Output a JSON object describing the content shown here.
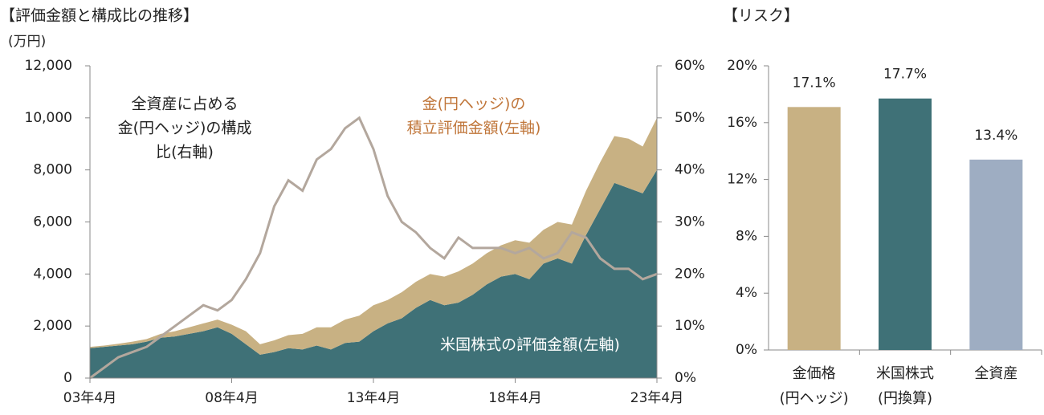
{
  "chart_data": [
    {
      "type": "area",
      "title": "【評価金額と構成比の推移】",
      "ylabel": "(万円)",
      "categories": [
        "03年4月",
        null,
        null,
        null,
        null,
        null,
        null,
        null,
        null,
        null,
        "08年4月",
        null,
        null,
        null,
        null,
        null,
        null,
        null,
        null,
        null,
        "13年4月",
        null,
        null,
        null,
        null,
        null,
        null,
        null,
        null,
        null,
        "18年4月",
        null,
        null,
        null,
        null,
        null,
        null,
        null,
        null,
        null,
        "23年4月"
      ],
      "ylim": [
        0,
        12000
      ],
      "yticks": [
        0,
        {
          "value": 2000,
          "label": "2,000"
        },
        {
          "value": 4000,
          "label": "4,000"
        },
        {
          "value": 6000,
          "label": "6,000"
        },
        {
          "value": 8000,
          "label": "8,000"
        },
        {
          "value": 10000,
          "label": "10,000"
        },
        {
          "value": 12000,
          "label": "12,000"
        }
      ],
      "y2lim": [
        0,
        60
      ],
      "y2ticks": [
        {
          "value": 0,
          "label": "0%"
        },
        {
          "value": 10,
          "label": "10%"
        },
        {
          "value": 20,
          "label": "20%"
        },
        {
          "value": 30,
          "label": "30%"
        },
        {
          "value": 40,
          "label": "40%"
        },
        {
          "value": 50,
          "label": "50%"
        },
        {
          "value": 60,
          "label": "60%"
        }
      ],
      "series": [
        {
          "name": [
            "米国株式の評価金額(左軸)"
          ],
          "color": "#3f7177",
          "stacked": true,
          "values": [
            1150,
            1200,
            1250,
            1300,
            1400,
            1550,
            1600,
            1700,
            1800,
            1950,
            1700,
            1300,
            900,
            1000,
            1150,
            1100,
            1250,
            1100,
            1350,
            1400,
            1800,
            2100,
            2300,
            2700,
            3000,
            2800,
            2900,
            3200,
            3600,
            3900,
            4000,
            3800,
            4400,
            4600,
            4400,
            5500,
            6500,
            7500,
            7300,
            7100,
            8000
          ]
        },
        {
          "name": [
            "金(円ヘッジ)の",
            "積立評価金額(左軸)"
          ],
          "color": "#c8b183",
          "label_color": "#c0763a",
          "stacked": true,
          "values": [
            50,
            50,
            70,
            100,
            100,
            150,
            200,
            250,
            300,
            300,
            350,
            500,
            400,
            450,
            500,
            600,
            700,
            850,
            900,
            1000,
            1000,
            900,
            1000,
            1000,
            1000,
            1100,
            1200,
            1200,
            1200,
            1200,
            1300,
            1400,
            1300,
            1400,
            1500,
            1700,
            1800,
            1800,
            1900,
            1800,
            2000
          ]
        },
        {
          "name": [
            "全資産に占める",
            "金(円ヘッジ)の構成",
            "比(右軸)"
          ],
          "color": "#b3a79d",
          "axis": "y2",
          "values": [
            0,
            2,
            4,
            5,
            6,
            8,
            10,
            12,
            14,
            13,
            15,
            19,
            24,
            33,
            38,
            36,
            42,
            44,
            48,
            50,
            44,
            35,
            30,
            28,
            25,
            23,
            27,
            25,
            25,
            25,
            24,
            25,
            23,
            24,
            28,
            27,
            23,
            21,
            21,
            19,
            20
          ]
        }
      ]
    },
    {
      "type": "bar",
      "title": "【リスク】",
      "categories": [
        [
          "金価格",
          "(円ヘッジ)"
        ],
        [
          "米国株式",
          "(円換算)"
        ],
        [
          "全資産"
        ]
      ],
      "values": [
        17.1,
        17.7,
        13.4
      ],
      "value_labels": [
        "17.1%",
        "17.7%",
        "13.4%"
      ],
      "colors": [
        "#c8b183",
        "#3f7177",
        "#9eadc2"
      ],
      "ylim": [
        0,
        20
      ],
      "yticks": [
        {
          "value": 0,
          "label": "0%"
        },
        {
          "value": 4,
          "label": "4%"
        },
        {
          "value": 8,
          "label": "8%"
        },
        {
          "value": 12,
          "label": "12%"
        },
        {
          "value": 16,
          "label": "16%"
        },
        {
          "value": 20,
          "label": "20%"
        }
      ]
    }
  ]
}
